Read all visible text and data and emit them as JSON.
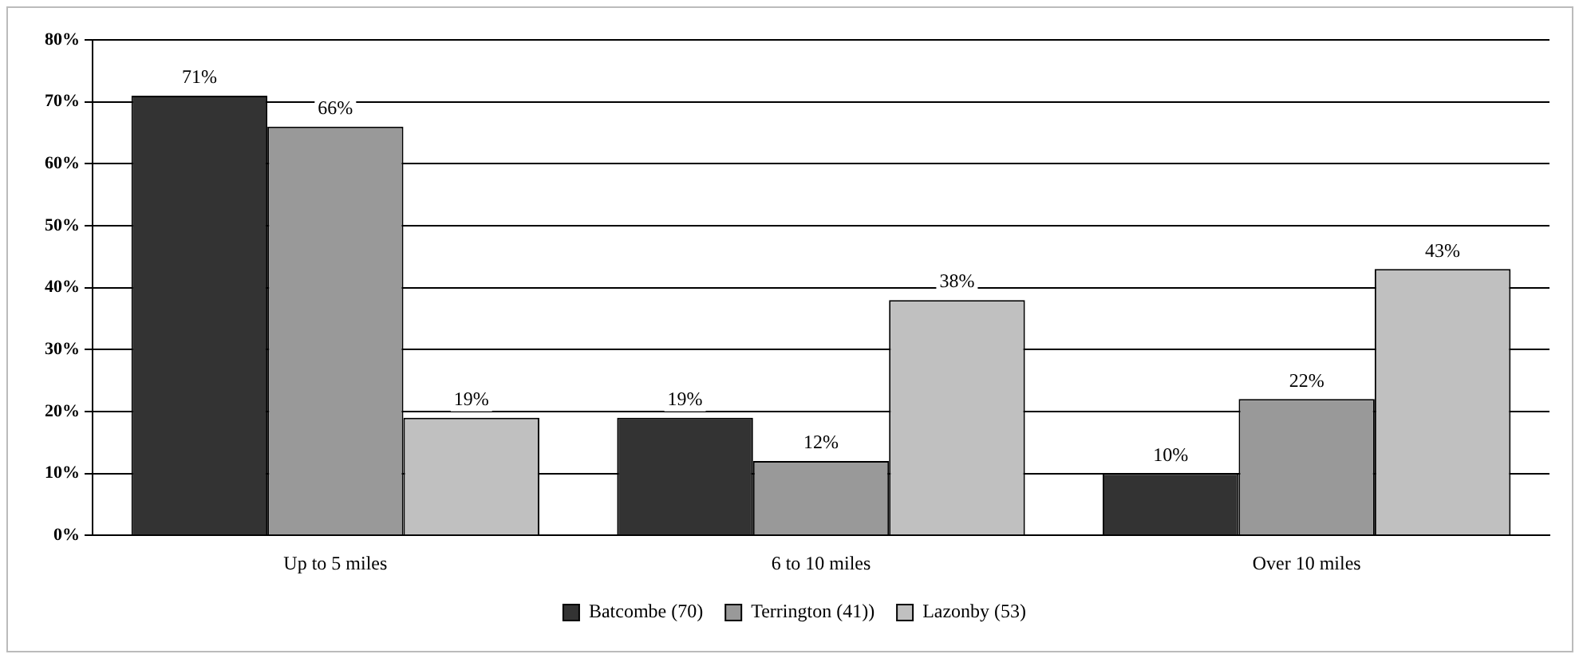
{
  "chart_data": {
    "type": "bar",
    "categories": [
      "Up to 5 miles",
      "6 to 10 miles",
      "Over 10 miles"
    ],
    "series": [
      {
        "name": "Batcombe (70)",
        "color": "#333333",
        "values": [
          71,
          19,
          10
        ],
        "value_labels": [
          "71%",
          "19%",
          "10%"
        ]
      },
      {
        "name": "Terrington (41))",
        "color": "#999999",
        "values": [
          66,
          12,
          22
        ],
        "value_labels": [
          "66%",
          "12%",
          "22%"
        ]
      },
      {
        "name": "Lazonby (53)",
        "color": "#c0c0c0",
        "values": [
          19,
          38,
          43
        ],
        "value_labels": [
          "19%",
          "38%",
          "43%"
        ]
      }
    ],
    "ylim": [
      0,
      80
    ],
    "yticks": [
      {
        "value": 0,
        "label": "0%"
      },
      {
        "value": 10,
        "label": "10%"
      },
      {
        "value": 20,
        "label": "20%"
      },
      {
        "value": 30,
        "label": "30%"
      },
      {
        "value": 40,
        "label": "40%"
      },
      {
        "value": 50,
        "label": "50%"
      },
      {
        "value": 60,
        "label": "60%"
      },
      {
        "value": 70,
        "label": "70%"
      },
      {
        "value": 80,
        "label": "80%"
      }
    ],
    "grid": "y",
    "legend": "bottom"
  }
}
